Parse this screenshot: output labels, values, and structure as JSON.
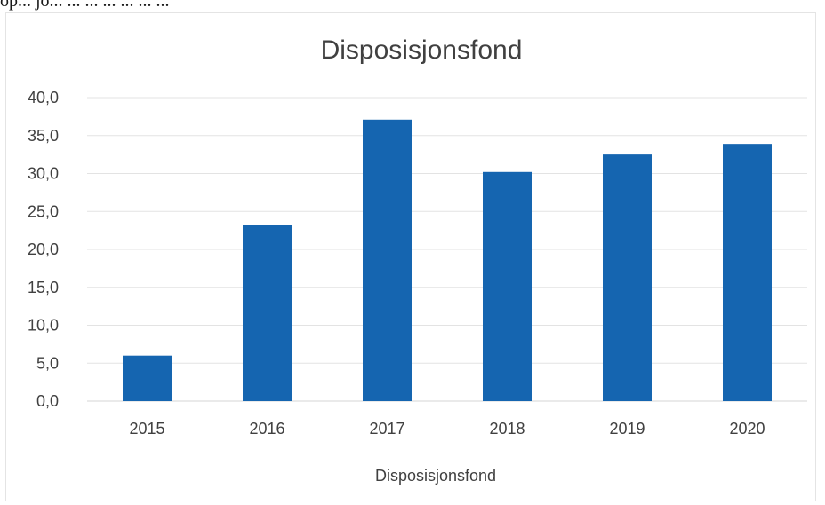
{
  "caption_fragment": "op... jo... ... ... ... ... ... ...",
  "chart_data": {
    "type": "bar",
    "title": "Disposisjonsfond",
    "xlabel": "",
    "ylabel": "",
    "categories": [
      "2015",
      "2016",
      "2017",
      "2018",
      "2019",
      "2020"
    ],
    "series": [
      {
        "name": "Disposisjonsfond",
        "values": [
          6.0,
          23.2,
          37.1,
          30.2,
          32.5,
          33.9
        ],
        "color": "#1565b0"
      }
    ],
    "ylim": [
      0,
      40
    ],
    "yticks": [
      "0,0",
      "5,0",
      "10,0",
      "15,0",
      "20,0",
      "25,0",
      "30,0",
      "35,0",
      "40,0"
    ],
    "grid": true,
    "legend_position": "bottom"
  }
}
